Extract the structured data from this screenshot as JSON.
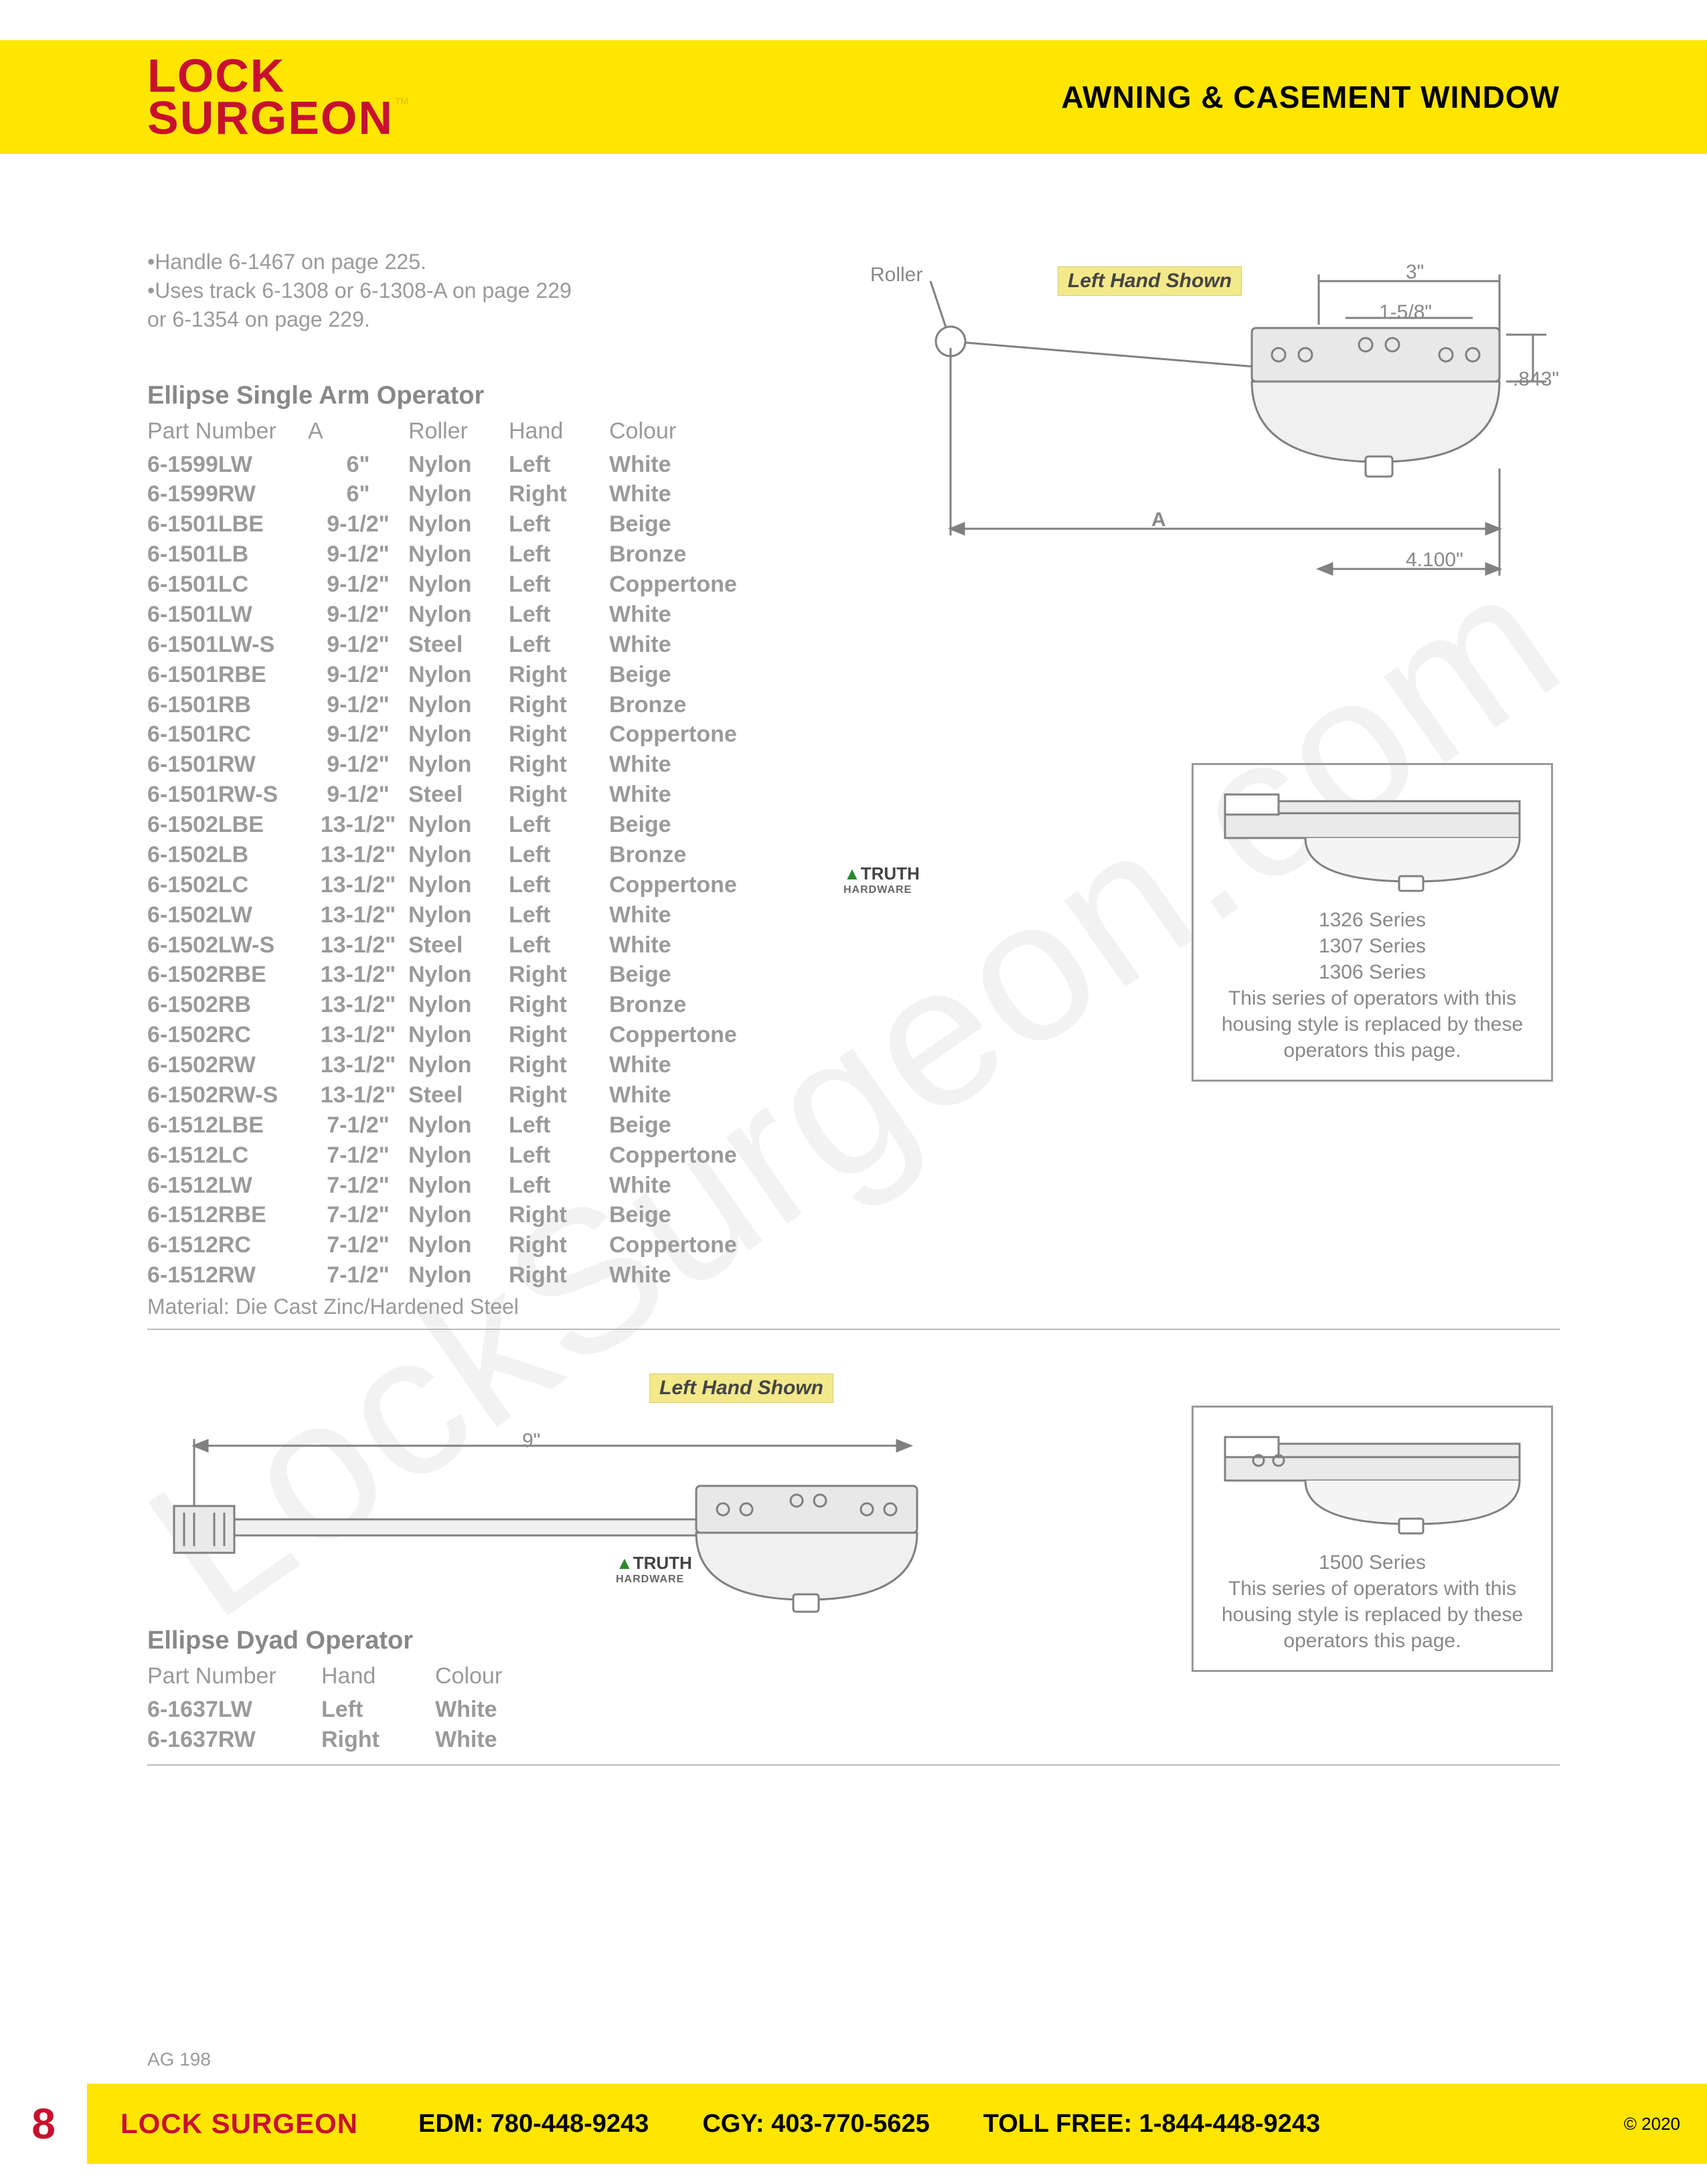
{
  "brand": {
    "line1": "LOCK",
    "line2": "SURGEON",
    "tm": "™"
  },
  "header": {
    "title": "AWNING & CASEMENT WINDOW"
  },
  "notes": [
    "•Handle 6-1467 on page 225.",
    "•Uses track 6-1308 or 6-1308-A on page 229",
    "  or 6-1354 on page 229."
  ],
  "diagram_top": {
    "roller_label": "Roller",
    "left_hand_shown": "Left Hand Shown",
    "dims": {
      "A": "A",
      "top3": "3\"",
      "top158": "1-5/8\"",
      "side843": ".843\"",
      "bottom4100": "4.100\""
    },
    "housing_color": "#d0d0d0",
    "line_color": "#808080"
  },
  "table1": {
    "title": "Ellipse Single Arm Operator",
    "headers": [
      "Part Number",
      "A",
      "Roller",
      "Hand",
      "Colour"
    ],
    "rows": [
      [
        "6-1599LW",
        "6\"",
        "Nylon",
        "Left",
        "White"
      ],
      [
        "6-1599RW",
        "6\"",
        "Nylon",
        "Right",
        "White"
      ],
      [
        "6-1501LBE",
        "9-1/2\"",
        "Nylon",
        "Left",
        "Beige"
      ],
      [
        "6-1501LB",
        "9-1/2\"",
        "Nylon",
        "Left",
        "Bronze"
      ],
      [
        "6-1501LC",
        "9-1/2\"",
        "Nylon",
        "Left",
        "Coppertone"
      ],
      [
        "6-1501LW",
        "9-1/2\"",
        "Nylon",
        "Left",
        "White"
      ],
      [
        "6-1501LW-S",
        "9-1/2\"",
        "Steel",
        "Left",
        "White"
      ],
      [
        "6-1501RBE",
        "9-1/2\"",
        "Nylon",
        "Right",
        "Beige"
      ],
      [
        "6-1501RB",
        "9-1/2\"",
        "Nylon",
        "Right",
        "Bronze"
      ],
      [
        "6-1501RC",
        "9-1/2\"",
        "Nylon",
        "Right",
        "Coppertone"
      ],
      [
        "6-1501RW",
        "9-1/2\"",
        "Nylon",
        "Right",
        "White"
      ],
      [
        "6-1501RW-S",
        "9-1/2\"",
        "Steel",
        "Right",
        "White"
      ],
      [
        "6-1502LBE",
        "13-1/2\"",
        "Nylon",
        "Left",
        "Beige"
      ],
      [
        "6-1502LB",
        "13-1/2\"",
        "Nylon",
        "Left",
        "Bronze"
      ],
      [
        "6-1502LC",
        "13-1/2\"",
        "Nylon",
        "Left",
        "Coppertone"
      ],
      [
        "6-1502LW",
        "13-1/2\"",
        "Nylon",
        "Left",
        "White"
      ],
      [
        "6-1502LW-S",
        "13-1/2\"",
        "Steel",
        "Left",
        "White"
      ],
      [
        "6-1502RBE",
        "13-1/2\"",
        "Nylon",
        "Right",
        "Beige"
      ],
      [
        "6-1502RB",
        "13-1/2\"",
        "Nylon",
        "Right",
        "Bronze"
      ],
      [
        "6-1502RC",
        "13-1/2\"",
        "Nylon",
        "Right",
        "Coppertone"
      ],
      [
        "6-1502RW",
        "13-1/2\"",
        "Nylon",
        "Right",
        "White"
      ],
      [
        "6-1502RW-S",
        "13-1/2\"",
        "Steel",
        "Right",
        "White"
      ],
      [
        "6-1512LBE",
        "7-1/2\"",
        "Nylon",
        "Left",
        "Beige"
      ],
      [
        "6-1512LC",
        "7-1/2\"",
        "Nylon",
        "Left",
        "Coppertone"
      ],
      [
        "6-1512LW",
        "7-1/2\"",
        "Nylon",
        "Left",
        "White"
      ],
      [
        "6-1512RBE",
        "7-1/2\"",
        "Nylon",
        "Right",
        "Beige"
      ],
      [
        "6-1512RC",
        "7-1/2\"",
        "Nylon",
        "Right",
        "Coppertone"
      ],
      [
        "6-1512RW",
        "7-1/2\"",
        "Nylon",
        "Right",
        "White"
      ]
    ],
    "material_label": "Material:",
    "material": "Die Cast Zinc/Hardened Steel"
  },
  "truth_logo": {
    "roof": "▲",
    "text": "TRUTH",
    "sub": "HARDWARE"
  },
  "sidebox1": {
    "series": [
      "1326 Series",
      "1307 Series",
      "1306 Series"
    ],
    "note": "This series of operators with this housing style is replaced by these operators this page."
  },
  "section2": {
    "title": "Ellipse Dyad Operator",
    "left_hand_shown": "Left Hand Shown",
    "dim9": "9\"",
    "headers": [
      "Part Number",
      "Hand",
      "Colour"
    ],
    "rows": [
      [
        "6-1637LW",
        "Left",
        "White"
      ],
      [
        "6-1637RW",
        "Right",
        "White"
      ]
    ]
  },
  "sidebox2": {
    "series": [
      "1500 Series"
    ],
    "note": "This series of operators with this housing style is replaced by these operators this page."
  },
  "footer": {
    "page": "8",
    "brand": "LOCK SURGEON",
    "edm": "EDM: 780-448-9243",
    "cgy": "CGY: 403-770-5625",
    "toll": "TOLL FREE: 1-844-448-9243",
    "copyright": "© 2020",
    "ag": "AG 198"
  },
  "watermark": "LockSurgeon.com",
  "colors": {
    "yellow": "#ffe600",
    "red": "#c8102e",
    "grey": "#9a9a9a",
    "line": "#808080"
  }
}
